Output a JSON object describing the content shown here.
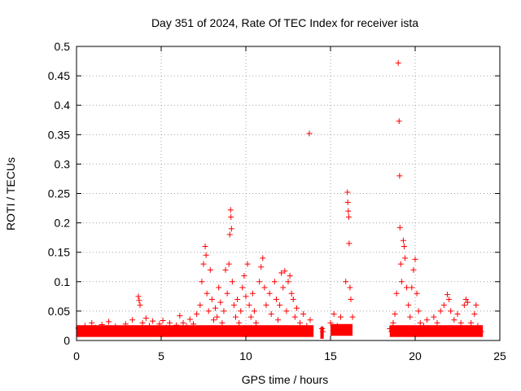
{
  "chart_data": {
    "type": "scatter",
    "title": "Day 351 of 2024, Rate Of TEC Index for receiver ista",
    "xlabel": "GPS time / hours",
    "ylabel": "ROTI / TECUs",
    "xlim": [
      0,
      25
    ],
    "ylim": [
      0,
      0.5
    ],
    "xticks": [
      0,
      5,
      10,
      15,
      20,
      25
    ],
    "yticks": [
      0,
      0.05,
      0.1,
      0.15,
      0.2,
      0.25,
      0.3,
      0.35,
      0.4,
      0.45,
      0.5
    ],
    "xtick_labels": [
      "0",
      "5",
      "10",
      "15",
      "20",
      "25"
    ],
    "ytick_labels": [
      "0",
      "0.05",
      "0.1",
      "0.15",
      "0.2",
      "0.25",
      "0.3",
      "0.35",
      "0.4",
      "0.45",
      "0.5"
    ],
    "grid": true,
    "marker": "+",
    "color": "#ff0000",
    "series": [
      {
        "name": "ROTI",
        "points": [
          [
            0.1,
            0.021
          ],
          [
            0.3,
            0.018
          ],
          [
            0.5,
            0.025
          ],
          [
            0.7,
            0.015
          ],
          [
            0.9,
            0.03
          ],
          [
            1.1,
            0.022
          ],
          [
            1.3,
            0.012
          ],
          [
            1.5,
            0.027
          ],
          [
            1.7,
            0.019
          ],
          [
            1.9,
            0.032
          ],
          [
            2.1,
            0.016
          ],
          [
            2.3,
            0.024
          ],
          [
            2.5,
            0.02
          ],
          [
            2.7,
            0.014
          ],
          [
            2.9,
            0.028
          ],
          [
            3.1,
            0.021
          ],
          [
            3.3,
            0.035
          ],
          [
            3.5,
            0.018
          ],
          [
            3.65,
            0.075
          ],
          [
            3.7,
            0.068
          ],
          [
            3.75,
            0.06
          ],
          [
            3.9,
            0.03
          ],
          [
            4.1,
            0.038
          ],
          [
            4.3,
            0.025
          ],
          [
            4.5,
            0.033
          ],
          [
            4.7,
            0.02
          ],
          [
            4.9,
            0.028
          ],
          [
            5.1,
            0.034
          ],
          [
            5.3,
            0.022
          ],
          [
            5.5,
            0.03
          ],
          [
            5.7,
            0.018
          ],
          [
            5.9,
            0.026
          ],
          [
            6.1,
            0.042
          ],
          [
            6.3,
            0.03
          ],
          [
            6.5,
            0.024
          ],
          [
            6.7,
            0.036
          ],
          [
            6.9,
            0.028
          ],
          [
            7.1,
            0.045
          ],
          [
            7.3,
            0.06
          ],
          [
            7.4,
            0.1
          ],
          [
            7.5,
            0.13
          ],
          [
            7.6,
            0.16
          ],
          [
            7.65,
            0.145
          ],
          [
            7.7,
            0.08
          ],
          [
            7.8,
            0.05
          ],
          [
            7.9,
            0.12
          ],
          [
            8.0,
            0.07
          ],
          [
            8.1,
            0.035
          ],
          [
            8.2,
            0.055
          ],
          [
            8.3,
            0.04
          ],
          [
            8.4,
            0.09
          ],
          [
            8.5,
            0.065
          ],
          [
            8.6,
            0.03
          ],
          [
            8.7,
            0.05
          ],
          [
            8.8,
            0.12
          ],
          [
            8.9,
            0.08
          ],
          [
            9.0,
            0.13
          ],
          [
            9.05,
            0.18
          ],
          [
            9.1,
            0.222
          ],
          [
            9.12,
            0.21
          ],
          [
            9.15,
            0.19
          ],
          [
            9.2,
            0.1
          ],
          [
            9.3,
            0.06
          ],
          [
            9.4,
            0.04
          ],
          [
            9.5,
            0.07
          ],
          [
            9.6,
            0.03
          ],
          [
            9.7,
            0.05
          ],
          [
            9.8,
            0.09
          ],
          [
            9.9,
            0.11
          ],
          [
            10.0,
            0.075
          ],
          [
            10.1,
            0.13
          ],
          [
            10.2,
            0.06
          ],
          [
            10.3,
            0.04
          ],
          [
            10.4,
            0.08
          ],
          [
            10.5,
            0.05
          ],
          [
            10.6,
            0.03
          ],
          [
            10.8,
            0.1
          ],
          [
            10.9,
            0.125
          ],
          [
            11.0,
            0.14
          ],
          [
            11.1,
            0.09
          ],
          [
            11.2,
            0.06
          ],
          [
            11.4,
            0.08
          ],
          [
            11.5,
            0.045
          ],
          [
            11.7,
            0.1
          ],
          [
            11.8,
            0.07
          ],
          [
            11.9,
            0.035
          ],
          [
            12.0,
            0.06
          ],
          [
            12.1,
            0.115
          ],
          [
            12.2,
            0.09
          ],
          [
            12.3,
            0.118
          ],
          [
            12.4,
            0.05
          ],
          [
            12.5,
            0.1
          ],
          [
            12.6,
            0.11
          ],
          [
            12.7,
            0.08
          ],
          [
            12.8,
            0.07
          ],
          [
            12.9,
            0.04
          ],
          [
            13.0,
            0.055
          ],
          [
            13.2,
            0.03
          ],
          [
            13.4,
            0.045
          ],
          [
            13.6,
            0.025
          ],
          [
            13.75,
            0.352
          ],
          [
            13.8,
            0.035
          ],
          [
            14.5,
            0.02
          ],
          [
            14.55,
            0.015
          ],
          [
            15.0,
            0.03
          ],
          [
            15.2,
            0.045
          ],
          [
            15.4,
            0.025
          ],
          [
            15.6,
            0.04
          ],
          [
            15.8,
            0.02
          ],
          [
            15.9,
            0.1
          ],
          [
            16.0,
            0.252
          ],
          [
            16.02,
            0.235
          ],
          [
            16.05,
            0.22
          ],
          [
            16.08,
            0.21
          ],
          [
            16.1,
            0.165
          ],
          [
            16.15,
            0.09
          ],
          [
            16.2,
            0.07
          ],
          [
            16.3,
            0.04
          ],
          [
            18.5,
            0.02
          ],
          [
            18.6,
            0.015
          ],
          [
            18.7,
            0.03
          ],
          [
            18.8,
            0.045
          ],
          [
            18.9,
            0.08
          ],
          [
            19.0,
            0.472
          ],
          [
            19.05,
            0.373
          ],
          [
            19.08,
            0.28
          ],
          [
            19.1,
            0.192
          ],
          [
            19.15,
            0.13
          ],
          [
            19.2,
            0.1
          ],
          [
            19.3,
            0.17
          ],
          [
            19.35,
            0.16
          ],
          [
            19.4,
            0.14
          ],
          [
            19.5,
            0.09
          ],
          [
            19.6,
            0.06
          ],
          [
            19.7,
            0.04
          ],
          [
            19.8,
            0.09
          ],
          [
            19.9,
            0.12
          ],
          [
            20.0,
            0.138
          ],
          [
            20.1,
            0.08
          ],
          [
            20.2,
            0.05
          ],
          [
            20.3,
            0.03
          ],
          [
            20.5,
            0.025
          ],
          [
            20.7,
            0.035
          ],
          [
            20.9,
            0.02
          ],
          [
            21.1,
            0.04
          ],
          [
            21.3,
            0.03
          ],
          [
            21.5,
            0.05
          ],
          [
            21.7,
            0.06
          ],
          [
            21.9,
            0.078
          ],
          [
            22.0,
            0.07
          ],
          [
            22.1,
            0.05
          ],
          [
            22.3,
            0.035
          ],
          [
            22.5,
            0.045
          ],
          [
            22.7,
            0.03
          ],
          [
            22.9,
            0.06
          ],
          [
            23.0,
            0.07
          ],
          [
            23.1,
            0.065
          ],
          [
            23.3,
            0.03
          ],
          [
            23.5,
            0.045
          ],
          [
            23.6,
            0.06
          ],
          [
            23.7,
            0.025
          ],
          [
            23.9,
            0.015
          ]
        ]
      }
    ],
    "bands": [
      {
        "x0": 0.0,
        "x1": 14.0,
        "y": 0.018
      },
      {
        "x0": 14.4,
        "x1": 14.6,
        "y": 0.015
      },
      {
        "x0": 15.0,
        "x1": 16.3,
        "y": 0.02
      },
      {
        "x0": 18.5,
        "x1": 24.0,
        "y": 0.018
      }
    ]
  }
}
